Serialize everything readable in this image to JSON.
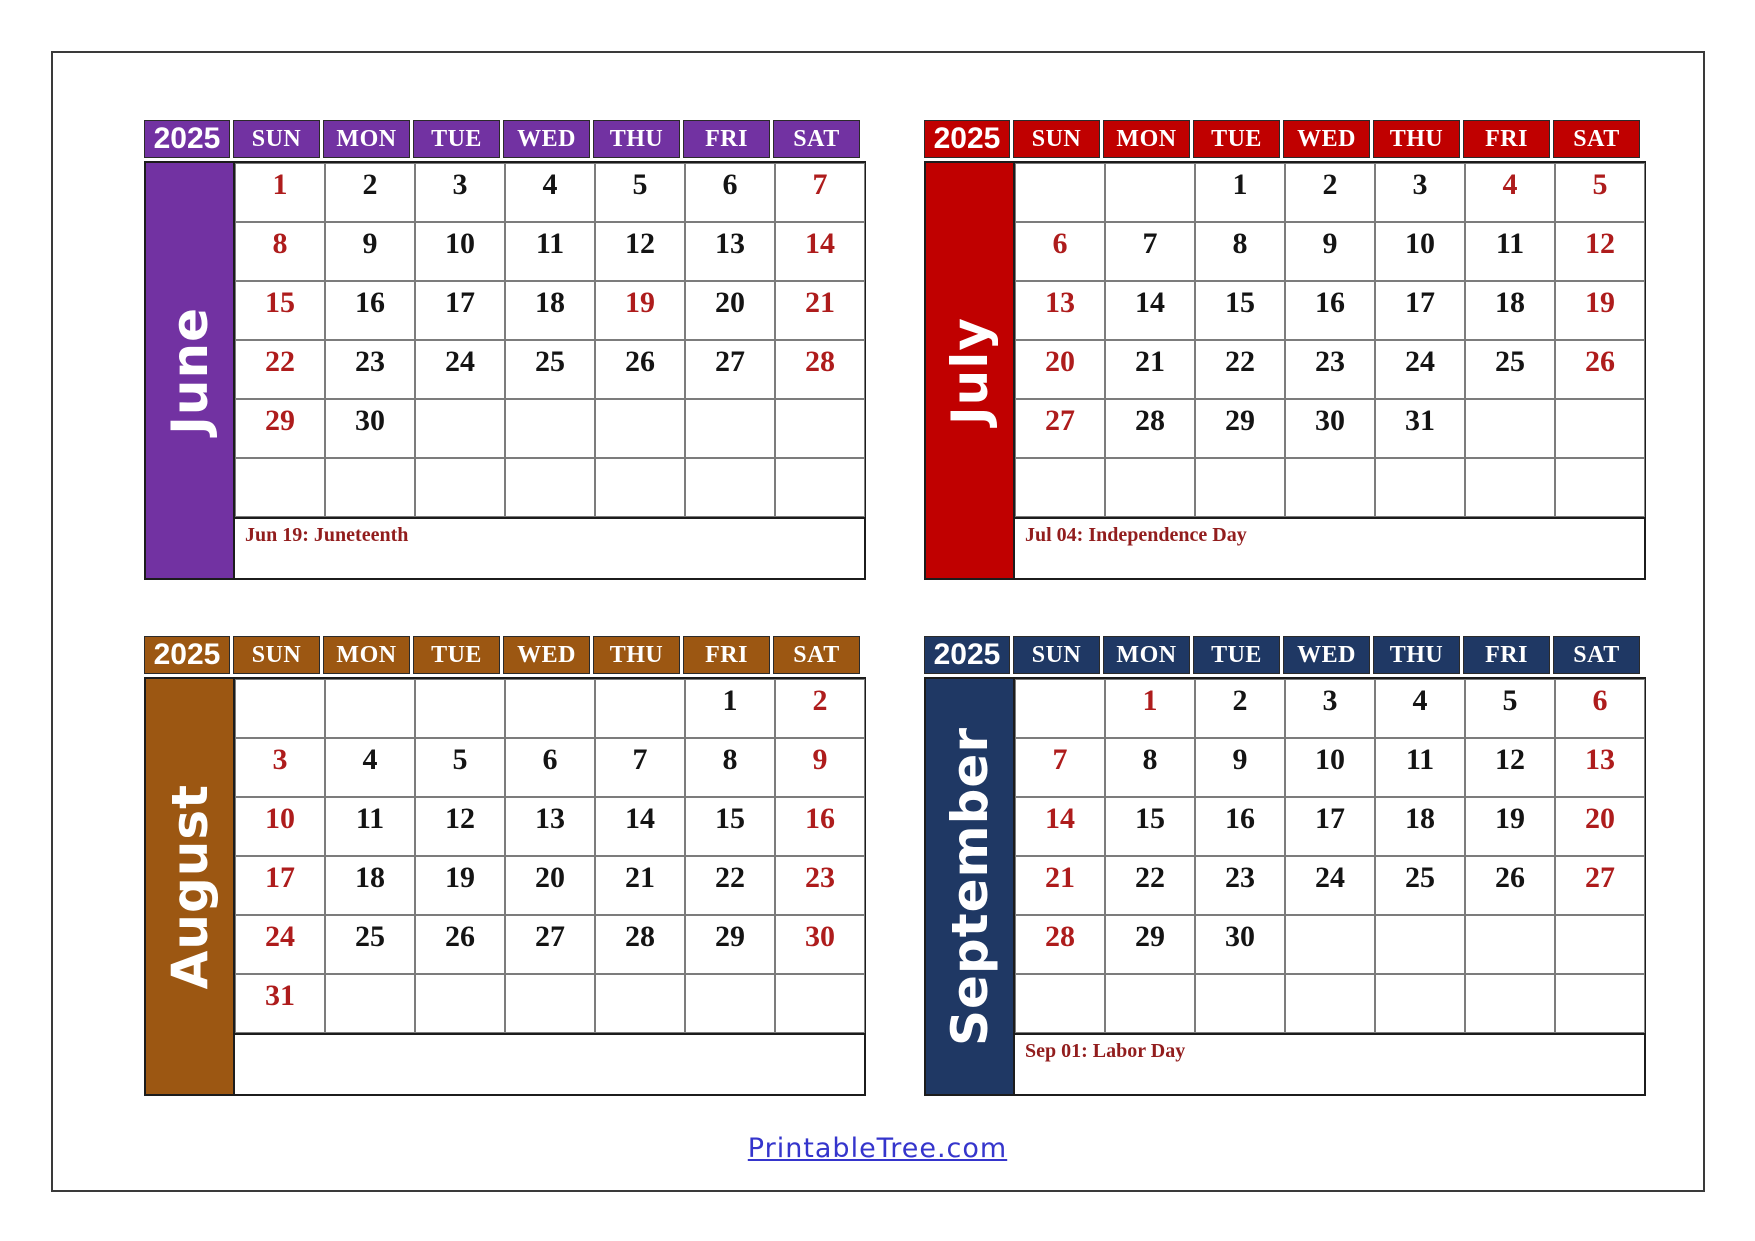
{
  "page": {
    "year": "2025",
    "day_headers": [
      "SUN",
      "MON",
      "TUE",
      "WED",
      "THU",
      "FRI",
      "SAT"
    ],
    "colors": {
      "weekday_date": "#141414",
      "weekend_holiday_date": "#AE1C1C",
      "holiday_note_text": "#921D1D",
      "footer_link": "#3535CC"
    },
    "footer": {
      "link_text": "PrintableTree.com"
    }
  },
  "calendars": [
    {
      "month": "June",
      "theme_color": "#7232A2",
      "note": "Jun 19: Juneteenth",
      "weeks": [
        [
          {
            "d": "1",
            "red": true
          },
          {
            "d": "2"
          },
          {
            "d": "3"
          },
          {
            "d": "4"
          },
          {
            "d": "5"
          },
          {
            "d": "6"
          },
          {
            "d": "7",
            "red": true
          }
        ],
        [
          {
            "d": "8",
            "red": true
          },
          {
            "d": "9"
          },
          {
            "d": "10"
          },
          {
            "d": "11"
          },
          {
            "d": "12"
          },
          {
            "d": "13"
          },
          {
            "d": "14",
            "red": true
          }
        ],
        [
          {
            "d": "15",
            "red": true
          },
          {
            "d": "16"
          },
          {
            "d": "17"
          },
          {
            "d": "18"
          },
          {
            "d": "19",
            "red": true
          },
          {
            "d": "20"
          },
          {
            "d": "21",
            "red": true
          }
        ],
        [
          {
            "d": "22",
            "red": true
          },
          {
            "d": "23"
          },
          {
            "d": "24"
          },
          {
            "d": "25"
          },
          {
            "d": "26"
          },
          {
            "d": "27"
          },
          {
            "d": "28",
            "red": true
          }
        ],
        [
          {
            "d": "29",
            "red": true
          },
          {
            "d": "30"
          },
          {
            "d": ""
          },
          {
            "d": ""
          },
          {
            "d": ""
          },
          {
            "d": ""
          },
          {
            "d": ""
          }
        ],
        [
          {
            "d": ""
          },
          {
            "d": ""
          },
          {
            "d": ""
          },
          {
            "d": ""
          },
          {
            "d": ""
          },
          {
            "d": ""
          },
          {
            "d": ""
          }
        ]
      ]
    },
    {
      "month": "July",
      "theme_color": "#C00000",
      "note": "Jul 04: Independence Day",
      "weeks": [
        [
          {
            "d": ""
          },
          {
            "d": ""
          },
          {
            "d": "1"
          },
          {
            "d": "2"
          },
          {
            "d": "3"
          },
          {
            "d": "4",
            "red": true
          },
          {
            "d": "5",
            "red": true
          }
        ],
        [
          {
            "d": "6",
            "red": true
          },
          {
            "d": "7"
          },
          {
            "d": "8"
          },
          {
            "d": "9"
          },
          {
            "d": "10"
          },
          {
            "d": "11"
          },
          {
            "d": "12",
            "red": true
          }
        ],
        [
          {
            "d": "13",
            "red": true
          },
          {
            "d": "14"
          },
          {
            "d": "15"
          },
          {
            "d": "16"
          },
          {
            "d": "17"
          },
          {
            "d": "18"
          },
          {
            "d": "19",
            "red": true
          }
        ],
        [
          {
            "d": "20",
            "red": true
          },
          {
            "d": "21"
          },
          {
            "d": "22"
          },
          {
            "d": "23"
          },
          {
            "d": "24"
          },
          {
            "d": "25"
          },
          {
            "d": "26",
            "red": true
          }
        ],
        [
          {
            "d": "27",
            "red": true
          },
          {
            "d": "28"
          },
          {
            "d": "29"
          },
          {
            "d": "30"
          },
          {
            "d": "31"
          },
          {
            "d": ""
          },
          {
            "d": ""
          }
        ],
        [
          {
            "d": ""
          },
          {
            "d": ""
          },
          {
            "d": ""
          },
          {
            "d": ""
          },
          {
            "d": ""
          },
          {
            "d": ""
          },
          {
            "d": ""
          }
        ]
      ]
    },
    {
      "month": "August",
      "theme_color": "#9C5712",
      "note": "",
      "weeks": [
        [
          {
            "d": ""
          },
          {
            "d": ""
          },
          {
            "d": ""
          },
          {
            "d": ""
          },
          {
            "d": ""
          },
          {
            "d": "1"
          },
          {
            "d": "2",
            "red": true
          }
        ],
        [
          {
            "d": "3",
            "red": true
          },
          {
            "d": "4"
          },
          {
            "d": "5"
          },
          {
            "d": "6"
          },
          {
            "d": "7"
          },
          {
            "d": "8"
          },
          {
            "d": "9",
            "red": true
          }
        ],
        [
          {
            "d": "10",
            "red": true
          },
          {
            "d": "11"
          },
          {
            "d": "12"
          },
          {
            "d": "13"
          },
          {
            "d": "14"
          },
          {
            "d": "15"
          },
          {
            "d": "16",
            "red": true
          }
        ],
        [
          {
            "d": "17",
            "red": true
          },
          {
            "d": "18"
          },
          {
            "d": "19"
          },
          {
            "d": "20"
          },
          {
            "d": "21"
          },
          {
            "d": "22"
          },
          {
            "d": "23",
            "red": true
          }
        ],
        [
          {
            "d": "24",
            "red": true
          },
          {
            "d": "25"
          },
          {
            "d": "26"
          },
          {
            "d": "27"
          },
          {
            "d": "28"
          },
          {
            "d": "29"
          },
          {
            "d": "30",
            "red": true
          }
        ],
        [
          {
            "d": "31",
            "red": true
          },
          {
            "d": ""
          },
          {
            "d": ""
          },
          {
            "d": ""
          },
          {
            "d": ""
          },
          {
            "d": ""
          },
          {
            "d": ""
          }
        ]
      ]
    },
    {
      "month": "September",
      "theme_color": "#1F3864",
      "note": "Sep 01: Labor Day",
      "weeks": [
        [
          {
            "d": ""
          },
          {
            "d": "1",
            "red": true
          },
          {
            "d": "2"
          },
          {
            "d": "3"
          },
          {
            "d": "4"
          },
          {
            "d": "5"
          },
          {
            "d": "6",
            "red": true
          }
        ],
        [
          {
            "d": "7",
            "red": true
          },
          {
            "d": "8"
          },
          {
            "d": "9"
          },
          {
            "d": "10"
          },
          {
            "d": "11"
          },
          {
            "d": "12"
          },
          {
            "d": "13",
            "red": true
          }
        ],
        [
          {
            "d": "14",
            "red": true
          },
          {
            "d": "15"
          },
          {
            "d": "16"
          },
          {
            "d": "17"
          },
          {
            "d": "18"
          },
          {
            "d": "19"
          },
          {
            "d": "20",
            "red": true
          }
        ],
        [
          {
            "d": "21",
            "red": true
          },
          {
            "d": "22"
          },
          {
            "d": "23"
          },
          {
            "d": "24"
          },
          {
            "d": "25"
          },
          {
            "d": "26"
          },
          {
            "d": "27",
            "red": true
          }
        ],
        [
          {
            "d": "28",
            "red": true
          },
          {
            "d": "29"
          },
          {
            "d": "30"
          },
          {
            "d": ""
          },
          {
            "d": ""
          },
          {
            "d": ""
          },
          {
            "d": ""
          }
        ],
        [
          {
            "d": ""
          },
          {
            "d": ""
          },
          {
            "d": ""
          },
          {
            "d": ""
          },
          {
            "d": ""
          },
          {
            "d": ""
          },
          {
            "d": ""
          }
        ]
      ]
    }
  ]
}
